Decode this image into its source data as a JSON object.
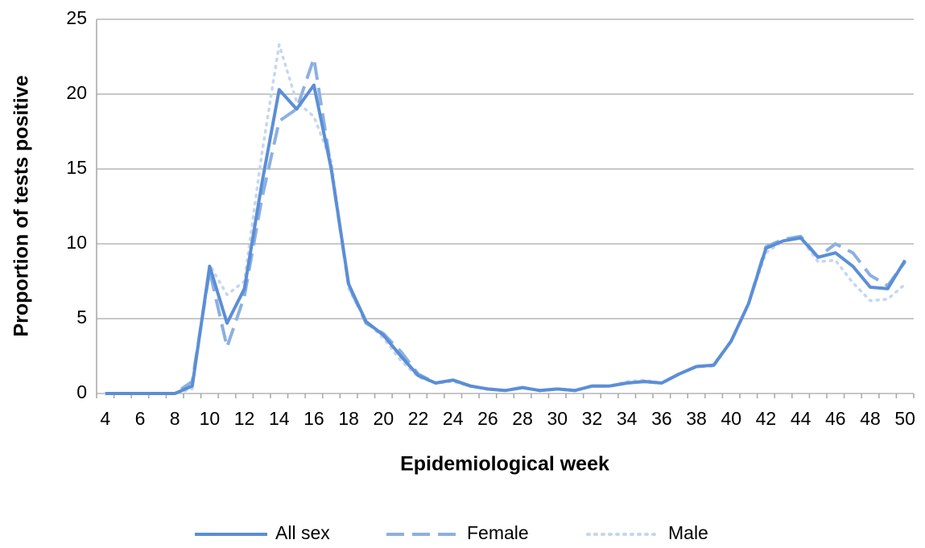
{
  "chart_data": {
    "type": "line",
    "x_label": "Epidemiological week",
    "y_label": "Proportion of tests positive",
    "categories": [
      "4",
      null,
      "6",
      null,
      "8",
      null,
      "10",
      null,
      "12",
      null,
      "14",
      null,
      "16",
      null,
      "18",
      null,
      "20",
      null,
      "22",
      null,
      "24",
      null,
      "26",
      null,
      "28",
      null,
      "30",
      null,
      "32",
      null,
      "34",
      null,
      "36",
      null,
      "38",
      null,
      "40",
      null,
      "42",
      null,
      "44",
      null,
      "46",
      null,
      "48",
      null,
      "50"
    ],
    "ylim": [
      0,
      25
    ],
    "yticks": [
      0,
      5,
      10,
      15,
      20,
      25
    ],
    "grid": true,
    "legend": "bottom",
    "series": [
      {
        "name": "All sex",
        "color": "#5b8ed6",
        "dash": "solid",
        "values": [
          0,
          0,
          0,
          0,
          0,
          0.5,
          8.5,
          4.7,
          7,
          14,
          20.3,
          19,
          20.6,
          15,
          7.3,
          4.8,
          3.9,
          2.5,
          1.2,
          0.7,
          0.9,
          0.5,
          0.3,
          0.2,
          0.4,
          0.2,
          0.3,
          0.2,
          0.5,
          0.5,
          0.7,
          0.8,
          0.7,
          1.3,
          1.8,
          1.9,
          3.5,
          6,
          9.7,
          10.2,
          10.4,
          9.1,
          9.4,
          8.5,
          7.1,
          7,
          8.9
        ]
      },
      {
        "name": "Female",
        "color": "#8cb0e0",
        "dash": "dashed",
        "values": [
          0,
          0,
          0,
          0,
          0,
          0.8,
          8.2,
          3.1,
          6.5,
          13,
          18.2,
          19,
          22.4,
          15,
          7.2,
          4.7,
          4,
          2.8,
          1.3,
          0.7,
          0.9,
          0.5,
          0.3,
          0.2,
          0.4,
          0.2,
          0.3,
          0.2,
          0.5,
          0.5,
          0.7,
          0.8,
          0.7,
          1.3,
          1.8,
          1.9,
          3.5,
          6,
          9.8,
          10.3,
          10.5,
          9.1,
          10,
          9.4,
          7.9,
          7.2,
          8.8
        ]
      },
      {
        "name": "Male",
        "color": "#c5d6f0",
        "dash": "dotted",
        "values": [
          0,
          0,
          0,
          0,
          0,
          0.3,
          8.6,
          6.6,
          7.5,
          16,
          23.3,
          19.5,
          18.5,
          15.5,
          7,
          4.8,
          3.7,
          2.2,
          1.1,
          0.7,
          0.8,
          0.5,
          0.3,
          0.2,
          0.4,
          0.2,
          0.3,
          0.2,
          0.5,
          0.5,
          0.8,
          0.9,
          0.7,
          1.3,
          1.8,
          1.8,
          3.5,
          6,
          9.4,
          10.2,
          10.4,
          8.8,
          8.9,
          7.4,
          6.2,
          6.3,
          7.3
        ]
      }
    ]
  }
}
